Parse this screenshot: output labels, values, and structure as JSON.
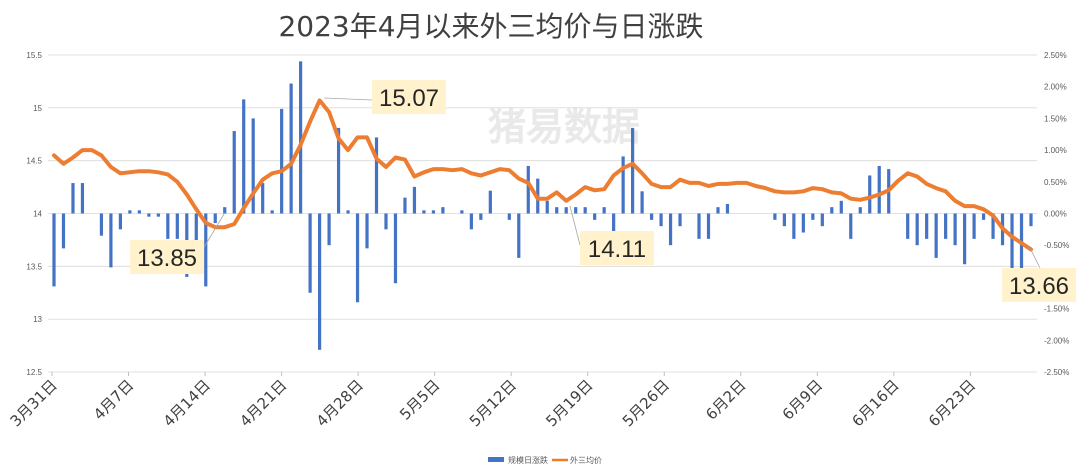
{
  "chart_data": {
    "type": "bar+line",
    "title": "2023年4月以来外三均价与日涨跌",
    "watermark": "猪易数据",
    "y_left": {
      "min": 12.5,
      "max": 15.5,
      "step": 0.5,
      "ticks": [
        "15.5",
        "15",
        "14.5",
        "14",
        "13.5",
        "13",
        "12.5"
      ]
    },
    "y_right": {
      "min": -2.5,
      "max": 2.5,
      "step": 0.5,
      "ticks": [
        "2.50%",
        "2.00%",
        "1.50%",
        "1.00%",
        "0.50%",
        "0.00%",
        "-0.50%",
        "-1.00%",
        "-1.50%",
        "-2.00%",
        "-2.50%"
      ]
    },
    "x_tick_labels": [
      {
        "label": "3月31日",
        "index": 0
      },
      {
        "label": "4月7日",
        "index": 5
      },
      {
        "label": "4月14日",
        "index": 10
      },
      {
        "label": "4月21日",
        "index": 15
      },
      {
        "label": "4月28日",
        "index": 20
      },
      {
        "label": "5月5日",
        "index": 25
      },
      {
        "label": "5月12日",
        "index": 30
      },
      {
        "label": "5月19日",
        "index": 35
      },
      {
        "label": "5月26日",
        "index": 40
      },
      {
        "label": "6月2日",
        "index": 45
      },
      {
        "label": "6月9日",
        "index": 50
      },
      {
        "label": "6月16日",
        "index": 55
      },
      {
        "label": "6月23日",
        "index": 60
      }
    ],
    "series": [
      {
        "name": "规模日涨跌",
        "type": "bar",
        "axis": "right",
        "color": "#4472c4",
        "values": [
          -1.15,
          -0.55,
          0.48,
          0.48,
          0,
          -0.35,
          -0.85,
          -0.25,
          0.05,
          0.05,
          -0.05,
          -0.05,
          -0.4,
          -0.4,
          -1.0,
          -0.55,
          -1.15,
          -0.15,
          0.1,
          1.3,
          1.8,
          1.5,
          0.48,
          0.05,
          1.65,
          2.05,
          2.4,
          -1.25,
          -2.15,
          -0.5,
          1.35,
          0.05,
          -1.4,
          -0.55,
          1.2,
          -0.25,
          -1.1,
          0.25,
          0.42,
          0.05,
          0.05,
          0.1,
          0,
          0.05,
          -0.25,
          -0.1,
          0.36,
          0,
          -0.1,
          -0.7,
          0.75,
          0.55,
          0.2,
          0.1,
          0.1,
          0.1,
          0.1,
          -0.1,
          0.1,
          -0.5,
          0.9,
          1.35,
          0.35,
          -0.1,
          -0.2,
          -0.5,
          -0.2,
          0,
          -0.4,
          -0.4,
          0.1,
          0.15,
          0,
          0,
          0,
          0,
          -0.1,
          -0.2,
          -0.4,
          -0.3,
          -0.1,
          -0.2,
          0.1,
          0.2,
          -0.4,
          0.1,
          0.6,
          0.75,
          0.7,
          0,
          -0.4,
          -0.5,
          -0.4,
          -0.7,
          -0.4,
          -0.5,
          -0.8,
          -0.4,
          -0.1,
          -0.4,
          -0.5,
          -0.9,
          -1.0,
          -0.2
        ],
        "display_note": ""
      },
      {
        "name": "外三均价",
        "type": "line",
        "axis": "left",
        "color": "#ed7d31",
        "values": [
          14.55,
          14.47,
          14.53,
          14.6,
          14.6,
          14.55,
          14.44,
          14.38,
          14.39,
          14.4,
          14.4,
          14.39,
          14.37,
          14.3,
          14.18,
          14.04,
          13.91,
          13.87,
          13.87,
          13.9,
          14.05,
          14.19,
          14.32,
          14.38,
          14.4,
          14.47,
          14.65,
          14.87,
          15.07,
          14.96,
          14.71,
          14.6,
          14.72,
          14.72,
          14.52,
          14.44,
          14.53,
          14.51,
          14.35,
          14.39,
          14.42,
          14.42,
          14.41,
          14.42,
          14.38,
          14.36,
          14.39,
          14.42,
          14.41,
          14.33,
          14.29,
          14.14,
          14.14,
          14.2,
          14.12,
          14.18,
          14.25,
          14.22,
          14.23,
          14.36,
          14.43,
          14.47,
          14.38,
          14.28,
          14.25,
          14.25,
          14.32,
          14.29,
          14.29,
          14.26,
          14.28,
          14.28,
          14.29,
          14.29,
          14.26,
          14.24,
          14.21,
          14.2,
          14.2,
          14.21,
          14.24,
          14.23,
          14.2,
          14.19,
          14.14,
          14.13,
          14.15,
          14.18,
          14.22,
          14.31,
          14.38,
          14.35,
          14.28,
          14.24,
          14.21,
          14.12,
          14.07,
          14.07,
          14.04,
          13.98,
          13.86,
          13.78,
          13.72,
          13.66
        ]
      }
    ],
    "annotations": [
      {
        "label": "15.07",
        "value": 15.07
      },
      {
        "label": "13.85",
        "value": 13.85
      },
      {
        "label": "14.11",
        "value": 14.11
      },
      {
        "label": "13.66",
        "value": 13.66
      }
    ],
    "legend": {
      "position": "bottom-center",
      "entries": [
        "规模日涨跌",
        "外三均价"
      ]
    }
  }
}
